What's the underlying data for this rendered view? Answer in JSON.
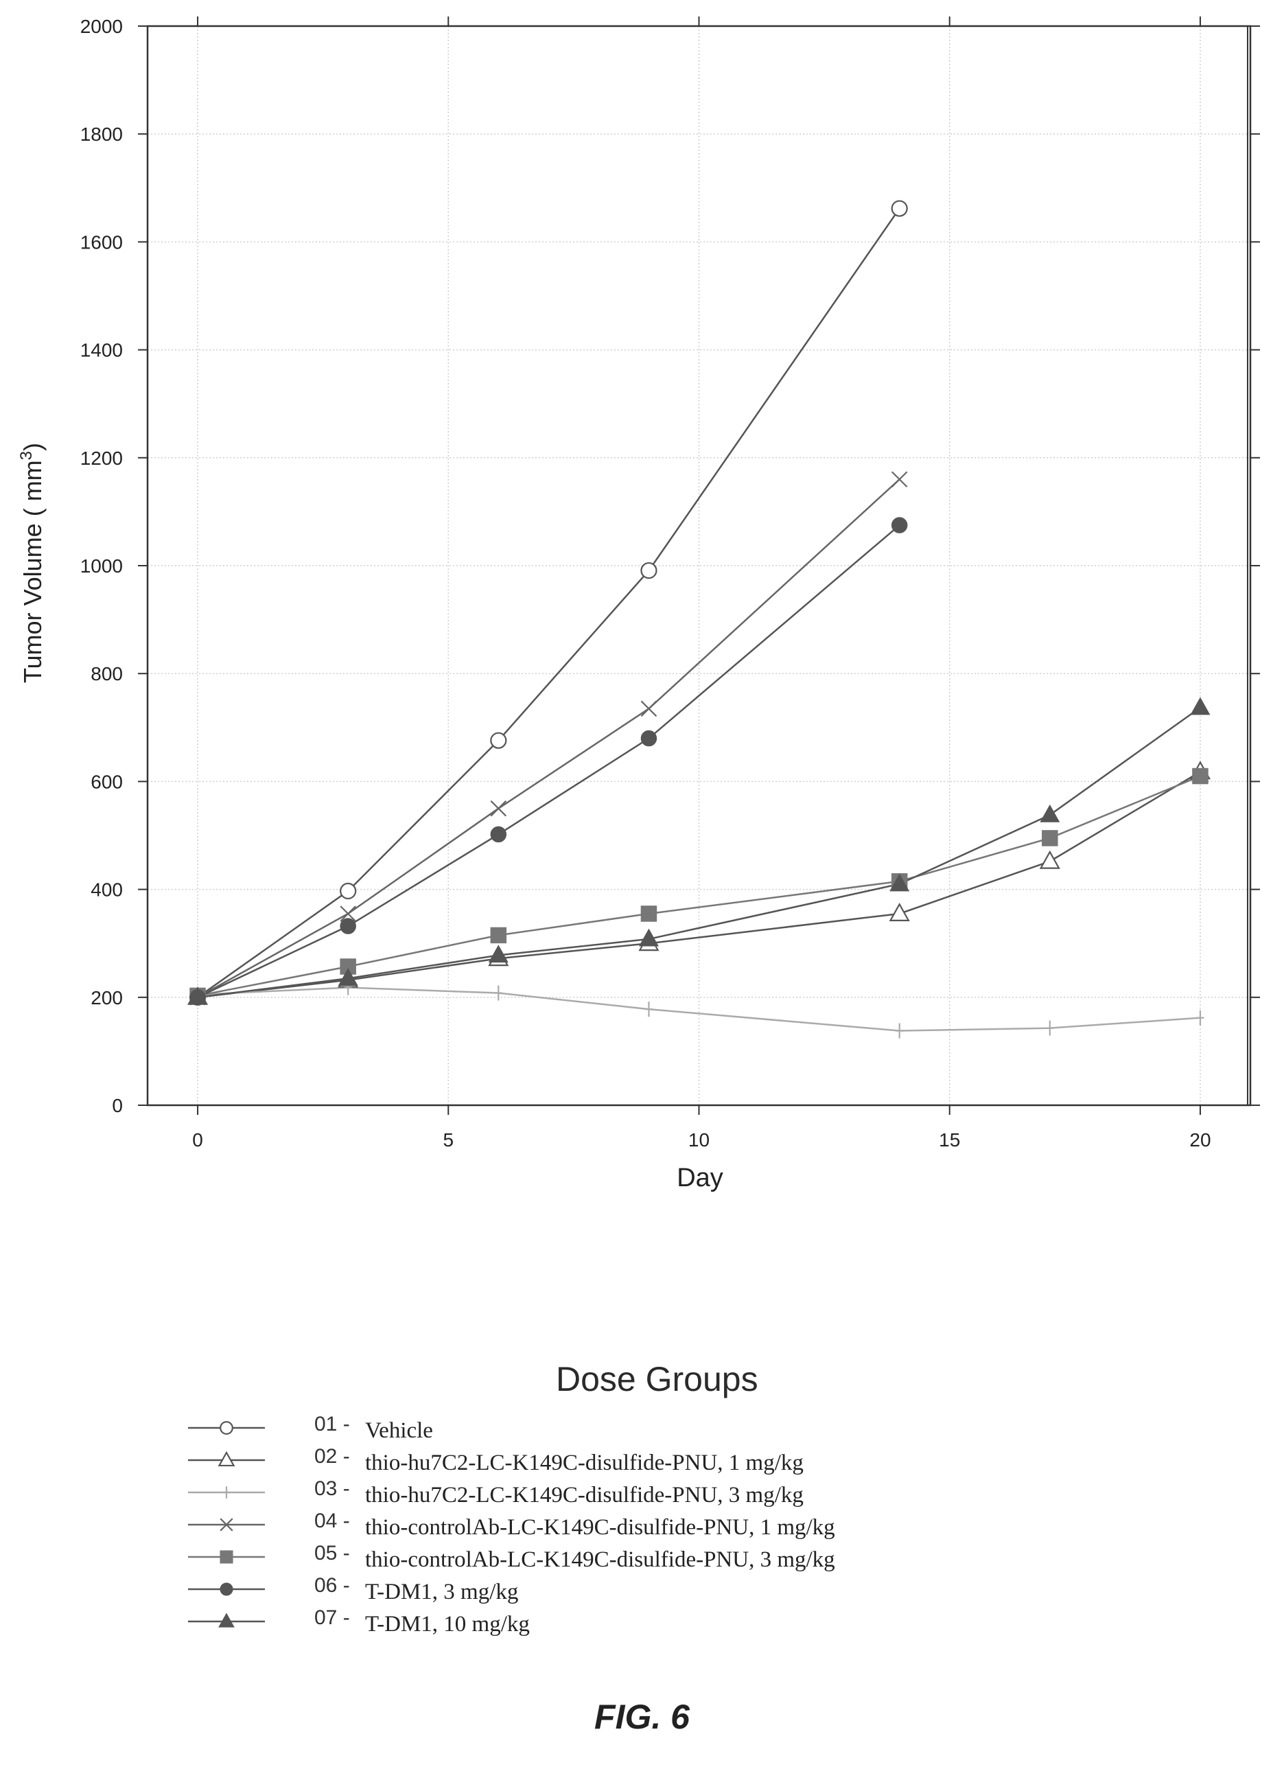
{
  "chart_data": {
    "type": "line",
    "xlabel": "Day",
    "ylabel": "Tumor Volume ( mm",
    "ylabel_superscript": "3",
    "ylabel_suffix": ")",
    "xlim": [
      -1,
      21
    ],
    "ylim": [
      0,
      2000
    ],
    "xticks": [
      0,
      5,
      10,
      15,
      20
    ],
    "yticks": [
      0,
      200,
      400,
      600,
      800,
      1000,
      1200,
      1400,
      1600,
      1800,
      2000
    ],
    "grid": true,
    "legend_position": "bottom",
    "legend_title": "Dose Groups",
    "series": [
      {
        "id": "01 -",
        "name": "Vehicle",
        "marker": "open-circle",
        "color": "#555555",
        "x": [
          0,
          3,
          6,
          9,
          14
        ],
        "y": [
          200,
          397,
          676,
          991,
          1662
        ]
      },
      {
        "id": "02 -",
        "name": "thio-hu7C2-LC-K149C-disulfide-PNU, 1 mg/kg",
        "marker": "open-triangle",
        "color": "#555555",
        "x": [
          0,
          3,
          6,
          9,
          14,
          17,
          20
        ],
        "y": [
          200,
          232,
          272,
          300,
          355,
          452,
          618
        ]
      },
      {
        "id": "03 -",
        "name": "thio-hu7C2-LC-K149C-disulfide-PNU, 3 mg/kg",
        "marker": "plus",
        "color": "#aaaaaa",
        "x": [
          0,
          3,
          6,
          9,
          14,
          17,
          20
        ],
        "y": [
          205,
          218,
          208,
          178,
          138,
          143,
          162
        ]
      },
      {
        "id": "04 -",
        "name": "thio-controlAb-LC-K149C-disulfide-PNU, 1 mg/kg",
        "marker": "x",
        "color": "#666666",
        "x": [
          0,
          3,
          6,
          9,
          14
        ],
        "y": [
          200,
          355,
          550,
          735,
          1160
        ]
      },
      {
        "id": "05 -",
        "name": "thio-controlAb-LC-K149C-disulfide-PNU, 3 mg/kg",
        "marker": "filled-square",
        "color": "#777777",
        "x": [
          0,
          3,
          6,
          9,
          14,
          17,
          20
        ],
        "y": [
          203,
          257,
          315,
          355,
          415,
          495,
          610
        ]
      },
      {
        "id": "06 -",
        "name": "T-DM1, 3 mg/kg",
        "marker": "filled-circle",
        "color": "#555555",
        "x": [
          0,
          3,
          6,
          9,
          14
        ],
        "y": [
          200,
          332,
          502,
          680,
          1075
        ]
      },
      {
        "id": "07 -",
        "name": "T-DM1, 10 mg/kg",
        "marker": "filled-triangle",
        "color": "#555555",
        "x": [
          0,
          3,
          6,
          9,
          14,
          17,
          20
        ],
        "y": [
          200,
          235,
          278,
          308,
          410,
          538,
          737
        ]
      }
    ]
  },
  "caption": "FIG. 6"
}
